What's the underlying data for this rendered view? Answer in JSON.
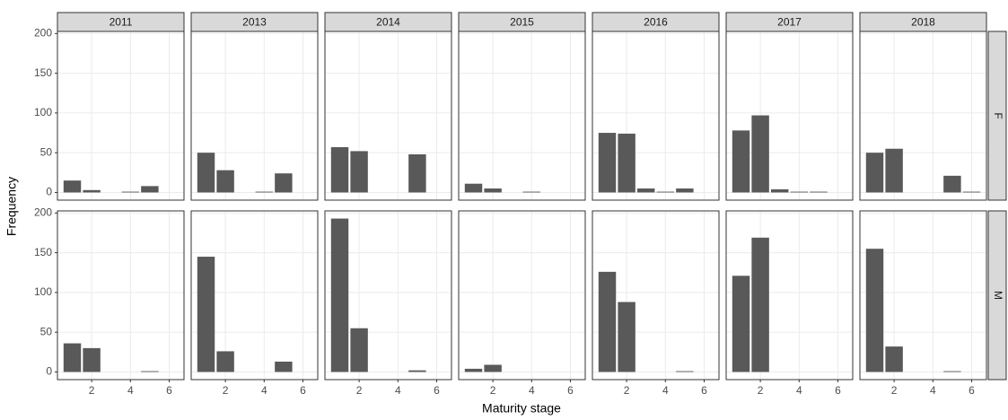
{
  "chart_data": {
    "type": "bar",
    "x_label": "Maturity stage",
    "y_label": "Frequency",
    "columns": [
      "2011",
      "2013",
      "2014",
      "2015",
      "2016",
      "2017",
      "2018"
    ],
    "x": [
      1,
      2,
      3,
      4,
      5,
      6
    ],
    "rows": [
      {
        "name": "F",
        "values": [
          [
            15,
            3,
            0,
            1,
            8,
            0
          ],
          [
            50,
            28,
            0,
            1,
            24,
            0
          ],
          [
            57,
            52,
            0,
            0,
            48,
            0
          ],
          [
            11,
            5,
            0,
            1,
            0,
            0
          ],
          [
            75,
            74,
            5,
            1,
            5,
            0
          ],
          [
            78,
            97,
            4,
            1,
            1,
            0
          ],
          [
            50,
            55,
            0,
            0,
            21,
            1
          ]
        ]
      },
      {
        "name": "M",
        "values": [
          [
            36,
            30,
            0,
            0,
            1,
            0
          ],
          [
            145,
            26,
            0,
            0,
            13,
            0
          ],
          [
            193,
            55,
            0,
            0,
            2,
            0
          ],
          [
            4,
            9,
            0,
            0,
            0,
            0
          ],
          [
            126,
            88,
            0,
            0,
            1,
            0
          ],
          [
            121,
            169,
            0,
            0,
            0,
            0
          ],
          [
            155,
            32,
            0,
            0,
            1,
            0
          ]
        ]
      }
    ],
    "color": "#595959",
    "xlim": [
      0.235,
      6.765
    ],
    "xticks": [
      2,
      4,
      6
    ],
    "ylim": [
      -9.65,
      202.65
    ],
    "yticks": [
      0,
      50,
      100,
      150,
      200
    ],
    "grid": true
  }
}
